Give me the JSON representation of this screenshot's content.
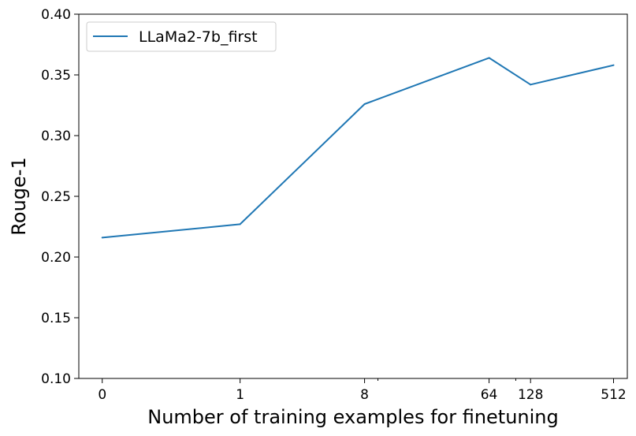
{
  "chart_data": {
    "type": "line",
    "xlabel": "Number of training examples for finetuning",
    "ylabel": "Rouge-1",
    "x_scale": "symlog",
    "x_ticks": [
      0,
      1,
      8,
      64,
      128,
      512
    ],
    "x_tick_labels": [
      "0",
      "1",
      "8",
      "64",
      "128",
      "512"
    ],
    "ylim": [
      0.1,
      0.4
    ],
    "y_ticks": [
      0.1,
      0.15,
      0.2,
      0.25,
      0.3,
      0.35,
      0.4
    ],
    "y_tick_labels": [
      "0.10",
      "0.15",
      "0.20",
      "0.25",
      "0.30",
      "0.35",
      "0.40"
    ],
    "grid": false,
    "legend_position": "top-left",
    "series": [
      {
        "name": "LLaMa2-7b_first",
        "color": "#1f77b4",
        "x": [
          0,
          1,
          8,
          64,
          128,
          512
        ],
        "y": [
          0.216,
          0.227,
          0.326,
          0.364,
          0.342,
          0.358
        ]
      }
    ]
  }
}
